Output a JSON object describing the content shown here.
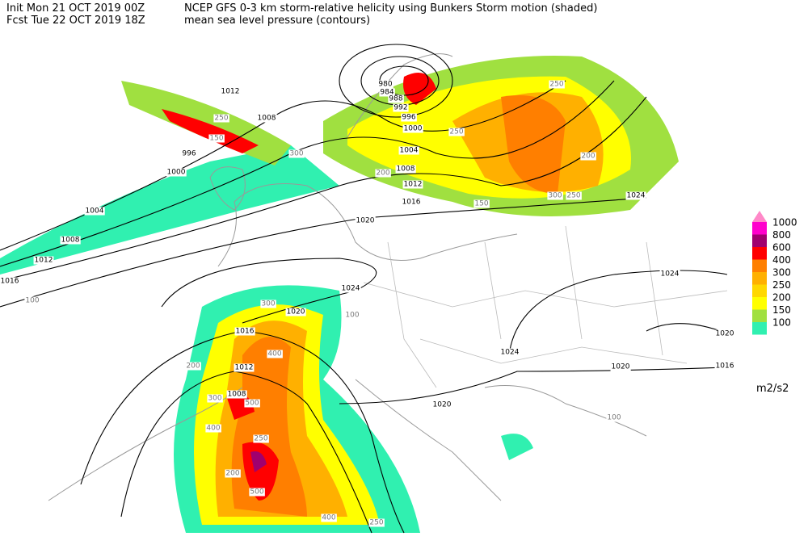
{
  "header": {
    "line1_left": "Init  Mon 21 OCT 2019 00Z",
    "line1_right": "NCEP GFS 0-3 km storm-relative helicity using Bunkers Storm motion (shaded)",
    "line2_left": "Fcst Tue 22 OCT 2019 18Z",
    "line2_right": "mean sea level pressure (contours)"
  },
  "legend": {
    "items": [
      {
        "label": "1000",
        "color": "#ff00cc"
      },
      {
        "label": "800",
        "color": "#a0006e"
      },
      {
        "label": "600",
        "color": "#ff0000"
      },
      {
        "label": "400",
        "color": "#ff7f00"
      },
      {
        "label": "300",
        "color": "#ffb000"
      },
      {
        "label": "250",
        "color": "#ffd800"
      },
      {
        "label": "200",
        "color": "#ffff00"
      },
      {
        "label": "150",
        "color": "#a0e040"
      },
      {
        "label": "100",
        "color": "#30f0b0"
      }
    ],
    "top_color": "#ff88c8",
    "unit": "m2/s2"
  },
  "pressure_labels": [
    "1012",
    "1008",
    "996",
    "1000",
    "1004",
    "1008",
    "1012",
    "1016",
    "980",
    "984",
    "988",
    "992",
    "996",
    "1000",
    "1004",
    "1008",
    "1012",
    "1016",
    "1020",
    "1024",
    "1024",
    "1024",
    "1024",
    "1020",
    "1020",
    "1020",
    "1020",
    "1016",
    "1016",
    "1012",
    "1008"
  ],
  "helicity_labels": [
    "150",
    "250",
    "300",
    "200",
    "250",
    "300",
    "250",
    "250",
    "200",
    "150",
    "300",
    "400",
    "200",
    "300",
    "500",
    "400",
    "250",
    "200",
    "500",
    "400",
    "250",
    "100",
    "100",
    "100"
  ]
}
